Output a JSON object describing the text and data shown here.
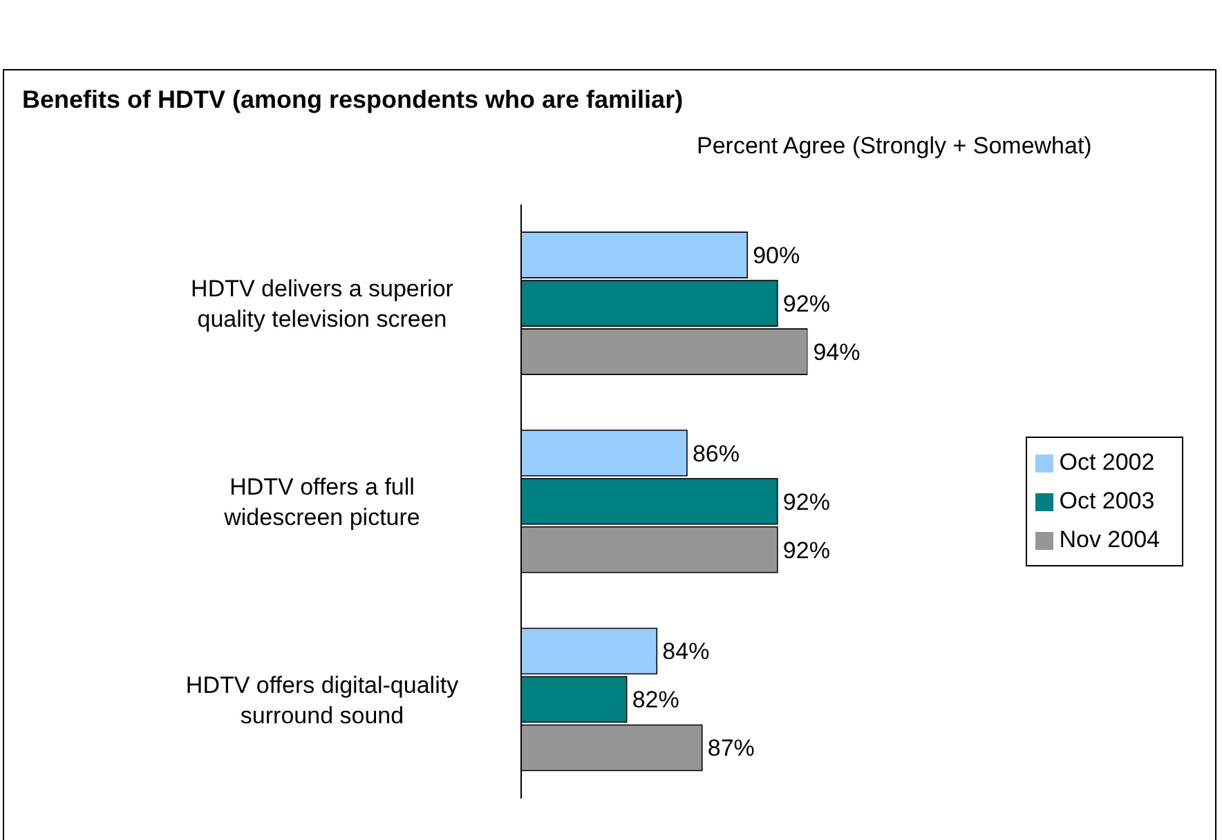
{
  "chart_data": {
    "type": "bar",
    "orientation": "horizontal",
    "title": "Benefits of HDTV (among respondents who are familiar)",
    "subtitle": "Percent Agree (Strongly + Somewhat)",
    "categories": [
      "HDTV delivers a superior quality television screen",
      "HDTV offers a full widescreen picture",
      "HDTV offers digital-quality surround sound"
    ],
    "series": [
      {
        "name": "Oct 2002",
        "color": "#99ccff",
        "values": [
          90,
          86,
          84
        ],
        "value_labels": [
          "90%",
          "86%",
          "84%"
        ]
      },
      {
        "name": "Oct 2003",
        "color": "#008080",
        "values": [
          92,
          92,
          82
        ],
        "value_labels": [
          "92%",
          "92%",
          "82%"
        ]
      },
      {
        "name": "Nov 2004",
        "color": "#969696",
        "values": [
          94,
          92,
          87
        ],
        "value_labels": [
          "94%",
          "92%",
          "87%"
        ]
      }
    ],
    "xlim": [
      75,
      94
    ],
    "tick_labels": "y",
    "legend": "right"
  }
}
